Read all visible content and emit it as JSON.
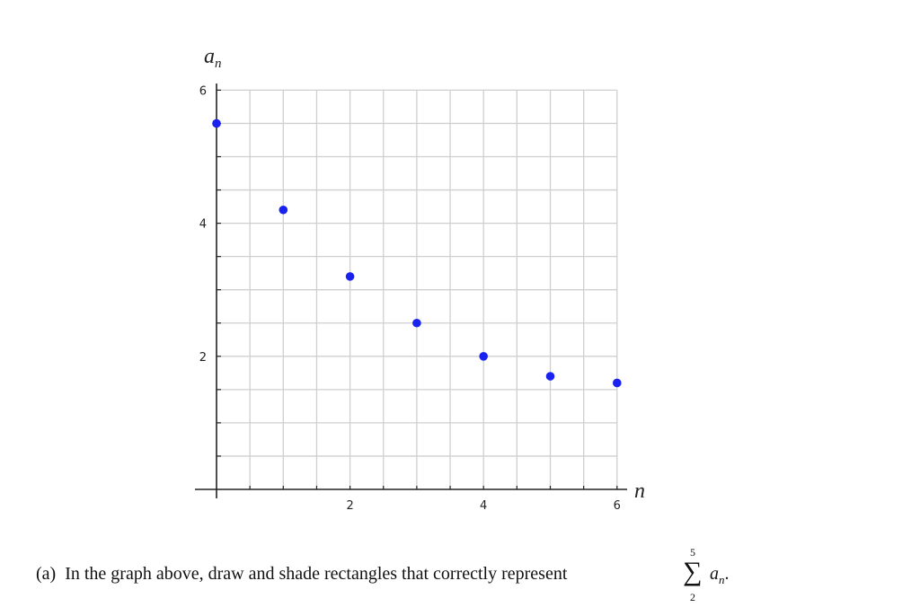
{
  "chart_data": {
    "type": "scatter",
    "title": "",
    "xlabel": "n",
    "ylabel": "a_n",
    "xlim": [
      0,
      6
    ],
    "ylim": [
      0,
      6
    ],
    "grid": true,
    "grid_step": 0.5,
    "x_ticks": [
      2,
      4,
      6
    ],
    "y_ticks": [
      2,
      4,
      6
    ],
    "x": [
      0,
      1,
      2,
      3,
      4,
      5,
      6
    ],
    "y": [
      5.5,
      4.2,
      3.2,
      2.5,
      2.0,
      1.7,
      1.6
    ],
    "marker_color": "#1a22f0",
    "legend": null
  },
  "axes": {
    "y_label_main": "a",
    "y_label_sub": "n",
    "x_label": "n"
  },
  "question": {
    "label": "(a)",
    "text": "In the graph above, draw and shade rectangles that correctly represent",
    "sum_upper": "5",
    "sum_symbol": "∑",
    "sum_lower": "2",
    "term_main": "a",
    "term_sub": "n",
    "term_end": "."
  }
}
